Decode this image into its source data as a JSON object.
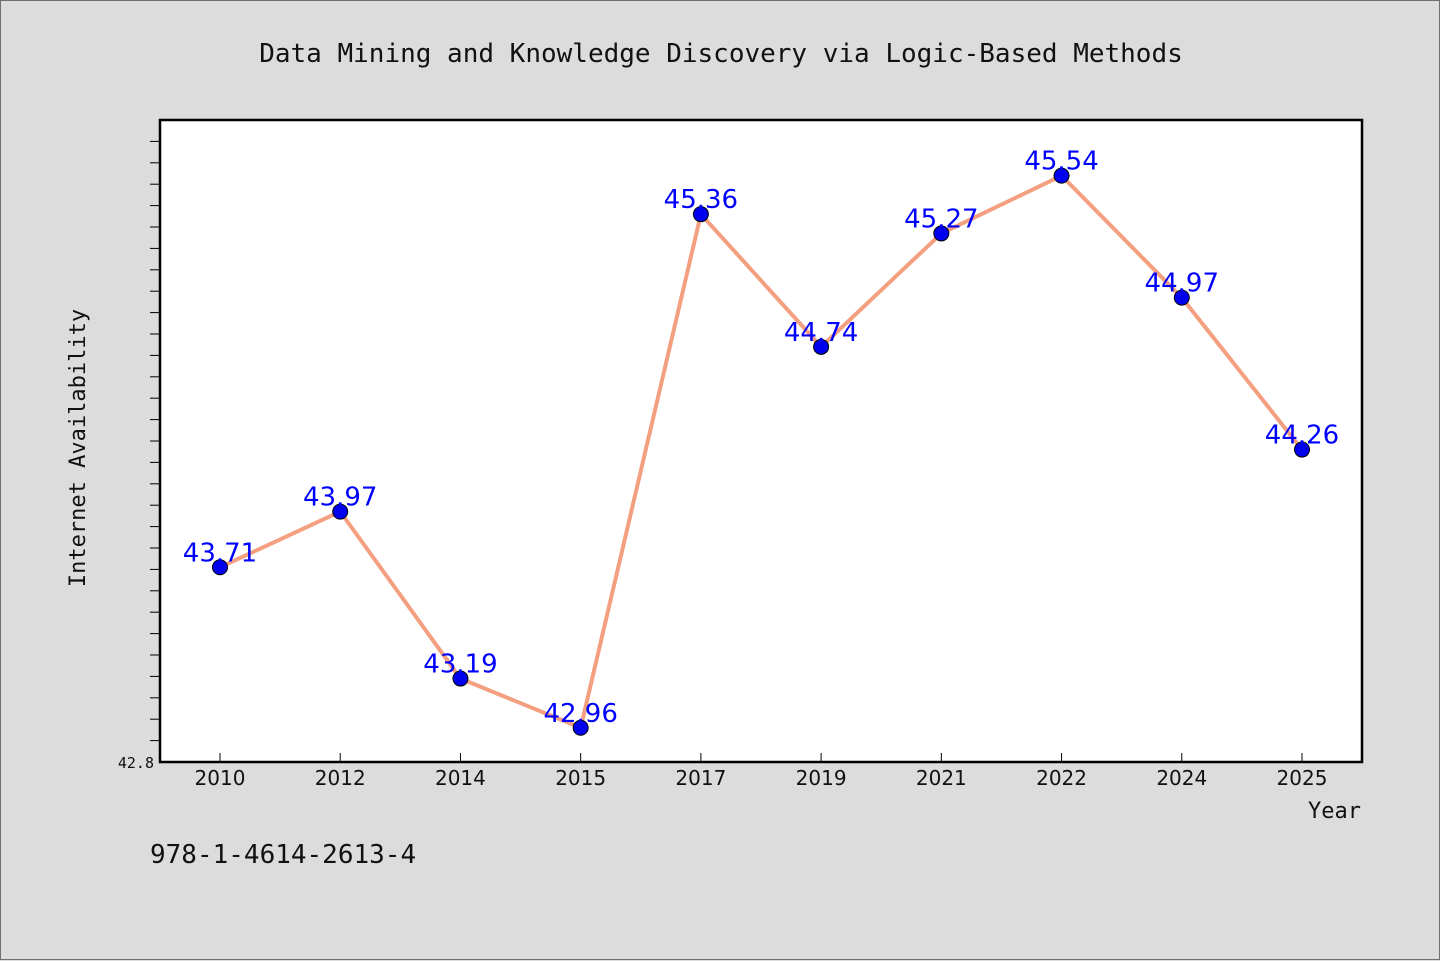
{
  "caption": "978-1-4614-2613-4",
  "colors": {
    "background": "#dcdcdc",
    "plot_background": "#ffffff",
    "line": "#f4a080",
    "marker": "#0000ee",
    "data_label": "#0000ff"
  },
  "chart_data": {
    "type": "line",
    "title": "Data Mining and Knowledge Discovery via Logic-Based Methods",
    "xlabel": "Year",
    "ylabel": "Internet Availability",
    "categories": [
      "2010",
      "2012",
      "2014",
      "2015",
      "2017",
      "2019",
      "2021",
      "2022",
      "2024",
      "2025"
    ],
    "series": [
      {
        "values": [
          43.71,
          43.97,
          43.19,
          42.96,
          45.36,
          44.74,
          45.27,
          45.54,
          44.97,
          44.26
        ]
      }
    ],
    "y_tick_labels": [
      "42.8"
    ],
    "ylim": [
      42.8,
      45.8
    ],
    "y_minor_tick_step": 0.1,
    "data_labels": true,
    "grid": false,
    "legend": false
  }
}
